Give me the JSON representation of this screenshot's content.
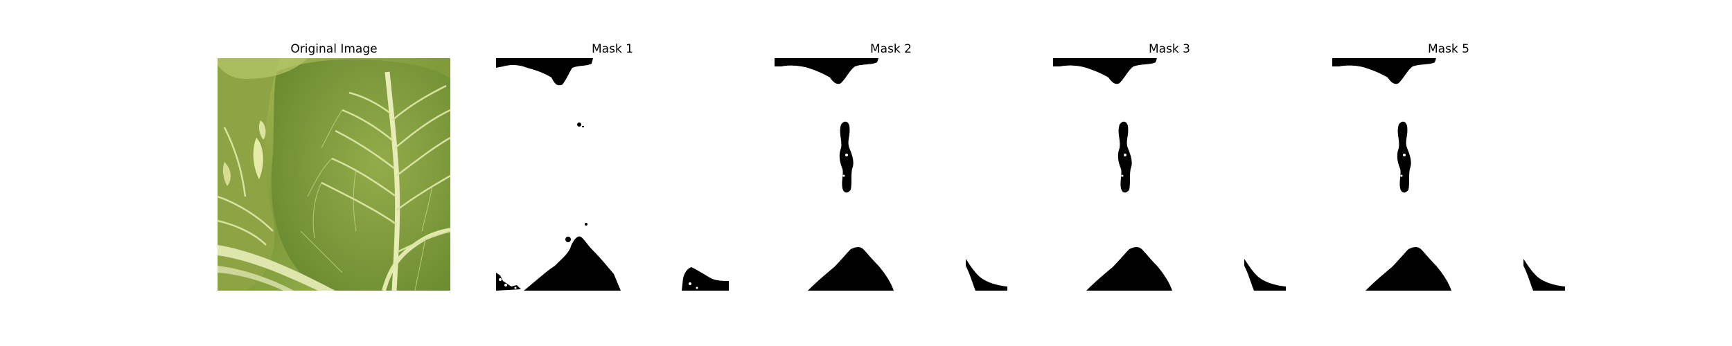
{
  "panels": [
    {
      "title": "Original Image"
    },
    {
      "title": "Mask 1"
    },
    {
      "title": "Mask 2"
    },
    {
      "title": "Mask 3"
    },
    {
      "title": "Mask 5"
    }
  ],
  "colors": {
    "mask_foreground": "#000000",
    "mask_background": "#ffffff",
    "leaf_light": "#b9c96a",
    "leaf_mid": "#8fa545",
    "leaf_dark": "#5f7a2c",
    "vein": "#e3e8b0"
  }
}
